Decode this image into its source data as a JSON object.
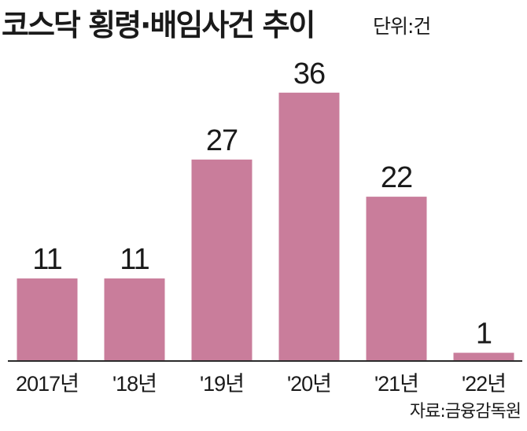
{
  "chart_data": {
    "type": "bar",
    "title": "코스닥 횡령·배임사건 추이",
    "unit_label": "단위:건",
    "source": "자료:금융감독원",
    "categories": [
      "2017년",
      "'18년",
      "'19년",
      "'20년",
      "'21년",
      "'22년"
    ],
    "values": [
      11,
      11,
      27,
      36,
      22,
      1
    ],
    "colors": {
      "bar": "#c97d9b"
    },
    "grid": false,
    "legend": "none",
    "ylim": [
      0,
      40
    ]
  }
}
